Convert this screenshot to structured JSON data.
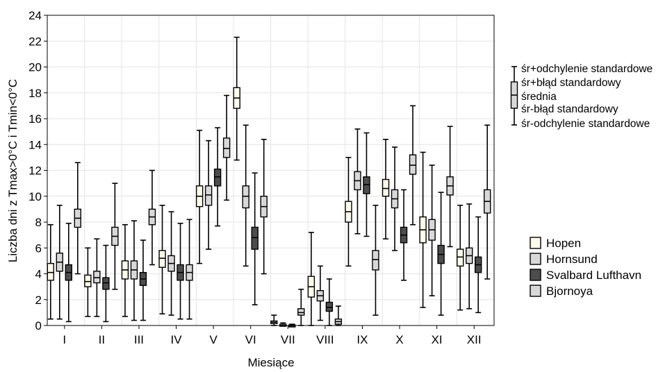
{
  "chart_data": {
    "type": "box",
    "xlabel": "Miesiące",
    "ylabel": "Liczba dni z Tmax>0°C i Tmin<0°C",
    "categories": [
      "I",
      "II",
      "III",
      "IV",
      "V",
      "VI",
      "VII",
      "VIII",
      "IX",
      "X",
      "XI",
      "XII"
    ],
    "ylim": [
      0,
      24
    ],
    "yticks": [
      0,
      2,
      4,
      6,
      8,
      10,
      12,
      14,
      16,
      18,
      20,
      22,
      24
    ],
    "grid": true,
    "box_legend": {
      "items": [
        "śr+odchylenie standardowe",
        "śr+błąd standardowy",
        "średnia",
        "śr-błąd standardowy",
        "śr-odchylenie standardowe"
      ]
    },
    "legend_position": "right",
    "series": [
      {
        "name": "Hopen",
        "color": "#fdfbea",
        "values": [
          {
            "mean": 4.1,
            "se_low": 3.5,
            "se_high": 4.8,
            "sd_low": 0.5,
            "sd_high": 7.8
          },
          {
            "mean": 3.4,
            "se_low": 3.0,
            "se_high": 3.9,
            "sd_low": 0.7,
            "sd_high": 6.0
          },
          {
            "mean": 4.3,
            "se_low": 3.6,
            "se_high": 5.0,
            "sd_low": 0.7,
            "sd_high": 7.8
          },
          {
            "mean": 5.2,
            "se_low": 4.5,
            "se_high": 5.8,
            "sd_low": 0.9,
            "sd_high": 9.3
          },
          {
            "mean": 10.0,
            "se_low": 9.2,
            "se_high": 10.8,
            "sd_low": 4.8,
            "sd_high": 15.1
          },
          {
            "mean": 17.6,
            "se_low": 16.8,
            "se_high": 18.4,
            "sd_low": 12.8,
            "sd_high": 22.3
          },
          {
            "mean": 0.25,
            "se_low": 0.15,
            "se_high": 0.35,
            "sd_low": 0.0,
            "sd_high": 0.8
          },
          {
            "mean": 3.0,
            "se_low": 2.2,
            "se_high": 3.8,
            "sd_low": 0.0,
            "sd_high": 7.2
          },
          {
            "mean": 8.8,
            "se_low": 8.0,
            "se_high": 9.6,
            "sd_low": 4.6,
            "sd_high": 13.0
          },
          {
            "mean": 10.6,
            "se_low": 10.0,
            "se_high": 11.3,
            "sd_low": 6.7,
            "sd_high": 14.4
          },
          {
            "mean": 7.4,
            "se_low": 6.4,
            "se_high": 8.4,
            "sd_low": 1.4,
            "sd_high": 13.4
          },
          {
            "mean": 5.3,
            "se_low": 4.6,
            "se_high": 5.9,
            "sd_low": 1.2,
            "sd_high": 9.3
          }
        ]
      },
      {
        "name": "Hornsund",
        "color": "#d8d8d8",
        "values": [
          {
            "mean": 4.9,
            "se_low": 4.2,
            "se_high": 5.6,
            "sd_low": 0.5,
            "sd_high": 9.3
          },
          {
            "mean": 3.7,
            "se_low": 3.3,
            "se_high": 4.2,
            "sd_low": 0.7,
            "sd_high": 6.7
          },
          {
            "mean": 4.3,
            "se_low": 3.6,
            "se_high": 5.0,
            "sd_low": 0.4,
            "sd_high": 8.1
          },
          {
            "mean": 4.8,
            "se_low": 4.2,
            "se_high": 5.4,
            "sd_low": 0.8,
            "sd_high": 8.8
          },
          {
            "mean": 10.1,
            "se_low": 9.3,
            "se_high": 10.8,
            "sd_low": 5.9,
            "sd_high": 14.3
          },
          {
            "mean": 10.0,
            "se_low": 9.1,
            "se_high": 10.8,
            "sd_low": 4.6,
            "sd_high": 15.5
          },
          {
            "mean": 0.0,
            "se_low": 0.0,
            "se_high": 0.1,
            "sd_low": 0.0,
            "sd_high": 0.2
          },
          {
            "mean": 2.3,
            "se_low": 1.9,
            "se_high": 2.7,
            "sd_low": 0.4,
            "sd_high": 4.6
          },
          {
            "mean": 11.2,
            "se_low": 10.5,
            "se_high": 11.9,
            "sd_low": 7.1,
            "sd_high": 15.2
          },
          {
            "mean": 9.8,
            "se_low": 9.1,
            "se_high": 10.5,
            "sd_low": 5.8,
            "sd_high": 13.8
          },
          {
            "mean": 7.4,
            "se_low": 6.6,
            "se_high": 8.2,
            "sd_low": 2.3,
            "sd_high": 12.4
          },
          {
            "mean": 5.4,
            "se_low": 4.8,
            "se_high": 6.0,
            "sd_low": 1.3,
            "sd_high": 9.4
          }
        ]
      },
      {
        "name": "Svalbard Lufthavn",
        "color": "#4d4d4d",
        "values": [
          {
            "mean": 4.1,
            "se_low": 3.5,
            "se_high": 4.7,
            "sd_low": 0.3,
            "sd_high": 7.9
          },
          {
            "mean": 3.3,
            "se_low": 2.8,
            "se_high": 3.7,
            "sd_low": 0.3,
            "sd_high": 6.2
          },
          {
            "mean": 3.6,
            "se_low": 3.1,
            "se_high": 4.1,
            "sd_low": 0.4,
            "sd_high": 6.6
          },
          {
            "mean": 4.1,
            "se_low": 3.5,
            "se_high": 4.7,
            "sd_low": 0.5,
            "sd_high": 7.9
          },
          {
            "mean": 11.5,
            "se_low": 10.8,
            "se_high": 12.1,
            "sd_low": 7.7,
            "sd_high": 15.3
          },
          {
            "mean": 6.8,
            "se_low": 5.9,
            "se_high": 7.6,
            "sd_low": 1.6,
            "sd_high": 11.8
          },
          {
            "mean": 0.0,
            "se_low": 0.0,
            "se_high": 0.05,
            "sd_low": 0.0,
            "sd_high": 0.1
          },
          {
            "mean": 1.4,
            "se_low": 1.1,
            "se_high": 1.8,
            "sd_low": 0.0,
            "sd_high": 3.6
          },
          {
            "mean": 10.9,
            "se_low": 10.2,
            "se_high": 11.5,
            "sd_low": 6.9,
            "sd_high": 14.9
          },
          {
            "mean": 7.0,
            "se_low": 6.4,
            "se_high": 7.6,
            "sd_low": 3.5,
            "sd_high": 10.5
          },
          {
            "mean": 5.5,
            "se_low": 4.8,
            "se_high": 6.2,
            "sd_low": 0.8,
            "sd_high": 10.3
          },
          {
            "mean": 4.7,
            "se_low": 4.1,
            "se_high": 5.3,
            "sd_low": 1.0,
            "sd_high": 8.4
          }
        ]
      },
      {
        "name": "Bjornoya",
        "color": "#d8d8d8",
        "values": [
          {
            "mean": 8.3,
            "se_low": 7.6,
            "se_high": 9.0,
            "sd_low": 4.0,
            "sd_high": 12.6
          },
          {
            "mean": 6.9,
            "se_low": 6.2,
            "se_high": 7.6,
            "sd_low": 2.8,
            "sd_high": 11.0
          },
          {
            "mean": 8.4,
            "se_low": 7.8,
            "se_high": 9.0,
            "sd_low": 4.7,
            "sd_high": 12.0
          },
          {
            "mean": 4.1,
            "se_low": 3.5,
            "se_high": 4.7,
            "sd_low": 0.5,
            "sd_high": 8.2
          },
          {
            "mean": 13.7,
            "se_low": 13.0,
            "se_high": 14.5,
            "sd_low": 9.7,
            "sd_high": 17.8
          },
          {
            "mean": 9.2,
            "se_low": 8.4,
            "se_high": 10.0,
            "sd_low": 4.0,
            "sd_high": 14.4
          },
          {
            "mean": 1.0,
            "se_low": 0.8,
            "se_high": 1.3,
            "sd_low": 0.0,
            "sd_high": 2.8
          },
          {
            "mean": 0.3,
            "se_low": 0.1,
            "se_high": 0.5,
            "sd_low": 0.0,
            "sd_high": 1.5
          },
          {
            "mean": 5.1,
            "se_low": 4.3,
            "se_high": 5.8,
            "sd_low": 0.8,
            "sd_high": 9.3
          },
          {
            "mean": 12.4,
            "se_low": 11.7,
            "se_high": 13.2,
            "sd_low": 7.8,
            "sd_high": 17.0
          },
          {
            "mean": 10.8,
            "se_low": 10.1,
            "se_high": 11.5,
            "sd_low": 6.1,
            "sd_high": 15.4
          },
          {
            "mean": 9.6,
            "se_low": 8.7,
            "se_high": 10.5,
            "sd_low": 3.6,
            "sd_high": 15.5
          }
        ]
      }
    ]
  }
}
